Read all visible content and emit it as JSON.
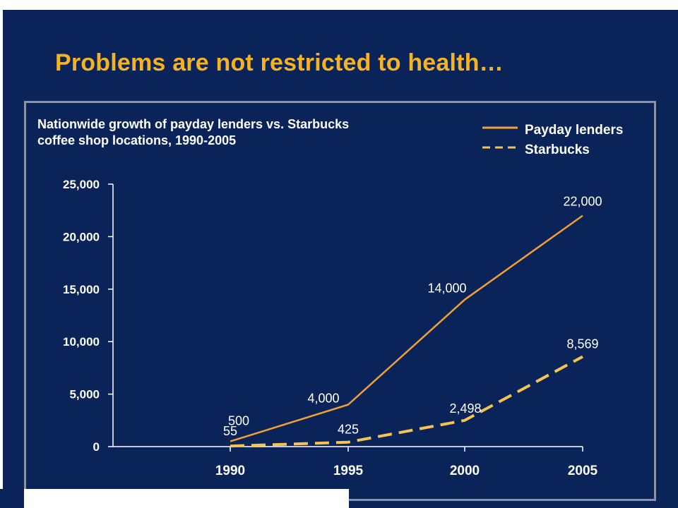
{
  "slide": {
    "title": "Problems are not restricted to health…",
    "colors": {
      "background": "#0a2459",
      "title": "#f5b324",
      "frame": "#8c92a3"
    }
  },
  "chart_data": {
    "type": "line",
    "title_lines": [
      "Nationwide growth of payday lenders vs. Starbucks",
      "coffee shop locations, 1990-2005"
    ],
    "x": [
      "1990",
      "1995",
      "2000",
      "2005"
    ],
    "y_ticks": [
      "0",
      "5,000",
      "10,000",
      "15,000",
      "20,000",
      "25,000"
    ],
    "ylim": [
      0,
      25000
    ],
    "grid": false,
    "legend_position": "top-right",
    "series": [
      {
        "name": "Payday lenders",
        "values": [
          500,
          4000,
          14000,
          22000
        ],
        "labels": [
          "500",
          "4,000",
          "14,000",
          "22,000"
        ],
        "style": "solid",
        "color": "#f2a033"
      },
      {
        "name": "Starbucks",
        "values": [
          55,
          425,
          2498,
          8569
        ],
        "labels": [
          "55",
          "425",
          "2,498",
          "8,569"
        ],
        "style": "dashed",
        "color": "#f3c451"
      }
    ]
  }
}
